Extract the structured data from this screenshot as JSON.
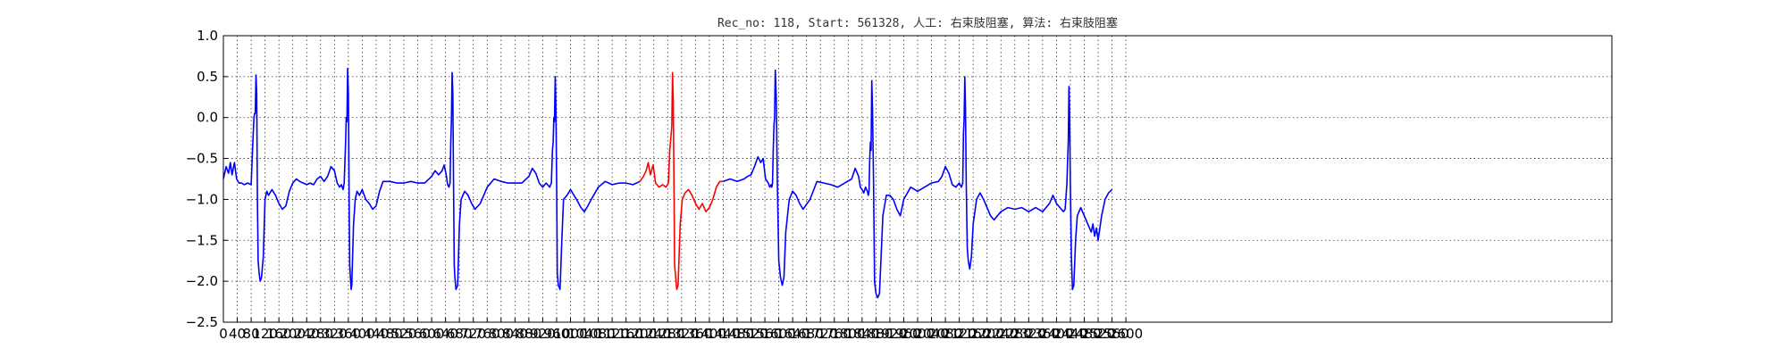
{
  "chart_data": {
    "type": "line",
    "title": "Rec_no: 118, Start: 561328, 人工: 右束肢阻塞, 算法: 右束肢阻塞",
    "xlabel": "",
    "ylabel": "",
    "xlim": [
      0,
      4000
    ],
    "ylim": [
      -2.5,
      1.0
    ],
    "grid": true,
    "yticks": [
      1.0,
      0.5,
      0.0,
      -0.5,
      -1.0,
      -1.5,
      -2.0,
      -2.5
    ],
    "ytick_labels": [
      "1.0",
      "0.5",
      "0.0",
      "−0.5",
      "−1.0",
      "−1.5",
      "−2.0",
      "−2.5"
    ],
    "xticks": [
      0,
      40,
      80,
      120,
      160,
      200,
      240,
      280,
      320,
      360,
      400,
      440,
      480,
      520,
      560,
      600,
      640,
      680,
      720,
      760,
      800,
      840,
      880,
      920,
      960,
      1000,
      1040,
      1080,
      1120,
      1160,
      1200,
      1240,
      1280,
      1320,
      1360,
      1400,
      1440,
      1480,
      1520,
      1560,
      1600,
      1640,
      1680,
      1720,
      1760,
      1800,
      1840,
      1880,
      1920,
      1960,
      2000,
      2040,
      2080,
      2120,
      2160,
      2200,
      2240,
      2280,
      2320,
      2360,
      2400,
      2440,
      2480,
      2520,
      2560,
      2600
    ],
    "xtick_labels": [
      "0",
      "40",
      "80",
      "120",
      "160",
      "200",
      "240",
      "280",
      "320",
      "360",
      "400",
      "440",
      "480",
      "520",
      "560",
      "600",
      "640",
      "680",
      "720",
      "760",
      "800",
      "840",
      "880",
      "920",
      "960",
      "1000",
      "1040",
      "1080",
      "1120",
      "1160",
      "1200",
      "1240",
      "1280",
      "1320",
      "1360",
      "1400",
      "1440",
      "1480",
      "1520",
      "1560",
      "1600",
      "1640",
      "1680",
      "1720",
      "1760",
      "1800",
      "1840",
      "1880",
      "1920",
      "1960",
      "2000",
      "2040",
      "2080",
      "2120",
      "2160",
      "2200",
      "2240",
      "2280",
      "2320",
      "2360",
      "2400",
      "2440",
      "2480",
      "2520",
      "2560",
      "2600"
    ],
    "highlight_range": [
      1200,
      1440
    ],
    "series": [
      {
        "color": "#0000ff",
        "x": [
          0,
          8,
          15,
          20,
          25,
          32,
          38,
          45,
          52,
          60,
          70,
          80,
          85,
          88,
          90,
          92,
          94,
          96,
          98,
          100,
          103,
          106,
          110,
          115,
          120,
          125,
          130,
          140,
          150,
          160,
          170,
          180,
          190,
          200,
          210,
          220,
          230,
          240,
          250,
          260,
          270,
          280,
          290,
          300,
          310,
          320,
          328,
          335,
          340,
          345,
          348,
          352,
          354,
          356,
          358,
          360,
          362,
          364,
          366,
          368,
          370,
          375,
          380,
          385,
          392,
          400,
          410,
          420,
          430,
          440,
          450,
          460,
          480,
          500,
          520,
          540,
          560,
          580,
          600,
          610,
          620,
          630,
          636,
          642,
          646,
          650,
          653,
          655,
          657,
          659,
          661,
          663,
          665,
          667,
          670,
          675,
          680,
          685,
          695,
          705,
          715,
          725,
          740,
          760,
          780,
          800,
          820,
          840,
          860,
          880,
          890,
          900,
          910,
          920,
          930,
          940,
          945,
          948,
          950,
          952,
          954,
          956,
          958,
          960,
          962,
          965,
          970,
          975,
          980,
          990,
          1000,
          1010,
          1020,
          1030,
          1040,
          1050,
          1060,
          1080,
          1100,
          1120,
          1140,
          1160,
          1180,
          1200
        ],
        "y": [
          -0.75,
          -0.6,
          -0.68,
          -0.55,
          -0.7,
          -0.55,
          -0.75,
          -0.8,
          -0.8,
          -0.82,
          -0.8,
          -0.82,
          -0.3,
          0.0,
          0.05,
          0.05,
          0.52,
          0.3,
          -1.0,
          -1.75,
          -1.9,
          -2.0,
          -1.95,
          -1.7,
          -1.0,
          -0.9,
          -0.95,
          -0.88,
          -0.95,
          -1.05,
          -1.12,
          -1.08,
          -0.9,
          -0.8,
          -0.75,
          -0.78,
          -0.8,
          -0.82,
          -0.8,
          -0.82,
          -0.75,
          -0.72,
          -0.78,
          -0.72,
          -0.6,
          -0.65,
          -0.8,
          -0.85,
          -0.82,
          -0.88,
          -0.8,
          -0.3,
          0.0,
          -0.05,
          0.6,
          0.3,
          -0.8,
          -1.8,
          -1.95,
          -2.1,
          -2.05,
          -1.3,
          -1.0,
          -0.9,
          -0.95,
          -0.88,
          -1.0,
          -1.05,
          -1.12,
          -1.08,
          -0.9,
          -0.78,
          -0.78,
          -0.8,
          -0.8,
          -0.78,
          -0.8,
          -0.8,
          -0.72,
          -0.65,
          -0.7,
          -0.65,
          -0.58,
          -0.7,
          -0.82,
          -0.85,
          -0.8,
          -0.3,
          -0.05,
          0.55,
          0.3,
          -0.8,
          -1.8,
          -1.95,
          -2.1,
          -2.05,
          -1.3,
          -1.0,
          -0.9,
          -0.95,
          -1.05,
          -1.12,
          -1.05,
          -0.85,
          -0.75,
          -0.78,
          -0.8,
          -0.8,
          -0.8,
          -0.72,
          -0.62,
          -0.68,
          -0.8,
          -0.85,
          -0.8,
          -0.85,
          -0.8,
          -0.4,
          -0.3,
          0.0,
          -0.05,
          0.5,
          0.1,
          -0.8,
          -1.9,
          -2.05,
          -2.1,
          -1.5,
          -1.0,
          -0.95,
          -0.88,
          -0.95,
          -1.02,
          -1.1,
          -1.15,
          -1.08,
          -1.0,
          -0.85,
          -0.78,
          -0.82,
          -0.8,
          -0.8,
          -0.82,
          -0.78
        ]
      },
      {
        "color": "#ff0000",
        "x": [
          1200,
          1210,
          1218,
          1224,
          1230,
          1238,
          1245,
          1255,
          1265,
          1275,
          1282,
          1286,
          1290,
          1292,
          1294,
          1296,
          1298,
          1300,
          1303,
          1306,
          1310,
          1316,
          1322,
          1330,
          1340,
          1350,
          1360,
          1370,
          1380,
          1390,
          1400,
          1410,
          1420,
          1430,
          1440
        ],
        "y": [
          -0.78,
          -0.72,
          -0.65,
          -0.55,
          -0.7,
          -0.58,
          -0.8,
          -0.85,
          -0.82,
          -0.85,
          -0.8,
          -0.4,
          -0.2,
          -0.1,
          0.55,
          0.2,
          -0.8,
          -1.8,
          -1.95,
          -2.1,
          -2.05,
          -1.3,
          -1.0,
          -0.92,
          -0.88,
          -0.95,
          -1.05,
          -1.12,
          -1.05,
          -1.15,
          -1.1,
          -1.0,
          -0.85,
          -0.78,
          -0.78
        ]
      },
      {
        "color": "#0000ff",
        "x": [
          1440,
          1460,
          1480,
          1500,
          1510,
          1520,
          1530,
          1540,
          1548,
          1555,
          1562,
          1570,
          1574,
          1578,
          1580,
          1582,
          1584,
          1586,
          1588,
          1590,
          1593,
          1596,
          1600,
          1605,
          1610,
          1615,
          1620,
          1630,
          1640,
          1650,
          1660,
          1670,
          1690,
          1710,
          1730,
          1750,
          1770,
          1790,
          1810,
          1820,
          1830,
          1835,
          1840,
          1845,
          1850,
          1855,
          1858,
          1860,
          1862,
          1864,
          1866,
          1868,
          1870,
          1873,
          1876,
          1880,
          1885,
          1890,
          1900,
          1910,
          1920,
          1930,
          1940,
          1950,
          1960,
          1980,
          2000,
          2020,
          2040,
          2060,
          2070,
          2080,
          2090,
          2100,
          2110,
          2120,
          2126,
          2130,
          2132,
          2134,
          2136,
          2138,
          2140,
          2143,
          2146,
          2150,
          2155,
          2160,
          2170,
          2180,
          2190,
          2200,
          2210,
          2220,
          2240,
          2260,
          2280,
          2300,
          2320,
          2340,
          2360,
          2380,
          2390,
          2400,
          2410,
          2420,
          2425,
          2430,
          2432,
          2434,
          2436,
          2438,
          2440,
          2443,
          2446,
          2450,
          2455,
          2460,
          2470,
          2480,
          2490,
          2500,
          2505,
          2510,
          2515,
          2520,
          2525,
          2530,
          2540,
          2550,
          2560
        ],
        "y": [
          -0.78,
          -0.75,
          -0.78,
          -0.75,
          -0.72,
          -0.7,
          -0.6,
          -0.48,
          -0.55,
          -0.5,
          -0.75,
          -0.8,
          -0.85,
          -0.82,
          -0.85,
          -0.8,
          -0.4,
          -0.1,
          0.0,
          0.58,
          0.2,
          -0.8,
          -1.75,
          -1.95,
          -2.05,
          -1.95,
          -1.4,
          -1.0,
          -0.9,
          -0.95,
          -1.05,
          -1.12,
          -1.0,
          -0.78,
          -0.8,
          -0.82,
          -0.85,
          -0.8,
          -0.75,
          -0.62,
          -0.72,
          -0.85,
          -0.88,
          -0.92,
          -0.85,
          -0.9,
          -0.95,
          -0.9,
          -0.5,
          -0.3,
          -0.4,
          0.45,
          0.1,
          -0.8,
          -2.0,
          -2.15,
          -2.2,
          -2.15,
          -1.2,
          -0.95,
          -0.95,
          -1.0,
          -1.12,
          -1.2,
          -1.0,
          -0.85,
          -0.9,
          -0.85,
          -0.8,
          -0.78,
          -0.72,
          -0.6,
          -0.68,
          -0.82,
          -0.85,
          -0.8,
          -0.85,
          -0.8,
          -0.2,
          0.0,
          0.5,
          0.1,
          -0.8,
          -1.6,
          -1.75,
          -1.85,
          -1.7,
          -1.3,
          -1.0,
          -0.92,
          -1.0,
          -1.1,
          -1.2,
          -1.25,
          -1.15,
          -1.1,
          -1.12,
          -1.1,
          -1.15,
          -1.1,
          -1.15,
          -1.05,
          -0.95,
          -1.05,
          -1.1,
          -1.15,
          -1.12,
          -0.8,
          -0.55,
          -0.3,
          0.38,
          0.0,
          -0.8,
          -1.7,
          -2.1,
          -2.05,
          -1.5,
          -1.2,
          -1.1,
          -1.2,
          -1.3,
          -1.4,
          -1.3,
          -1.45,
          -1.35,
          -1.5,
          -1.35,
          -1.2,
          -1.0,
          -0.92,
          -0.88
        ]
      }
    ]
  }
}
